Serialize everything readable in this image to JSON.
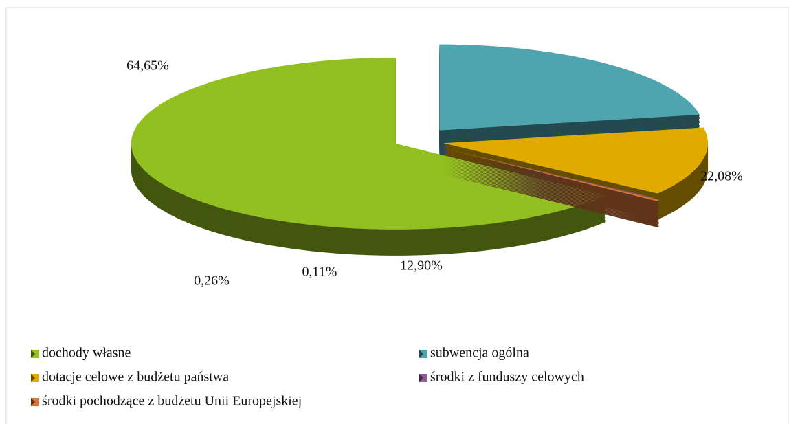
{
  "chart_data": {
    "type": "pie",
    "categories": [
      "dochody własne",
      "subwencja ogólna",
      "dotacje celowe z budżetu państwa",
      "środki z funduszy celowych",
      "środki pochodzące z budżetu Unii Europejskiej"
    ],
    "values": [
      64.65,
      22.08,
      12.9,
      0.11,
      0.26
    ],
    "value_labels": [
      "64,65%",
      "22,08%",
      "12,90%",
      "0,11%",
      "0,26%"
    ],
    "colors": [
      "#92c020",
      "#4ea5ae",
      "#e0aa00",
      "#8e5c92",
      "#d8743a"
    ],
    "legend": "bottom"
  }
}
